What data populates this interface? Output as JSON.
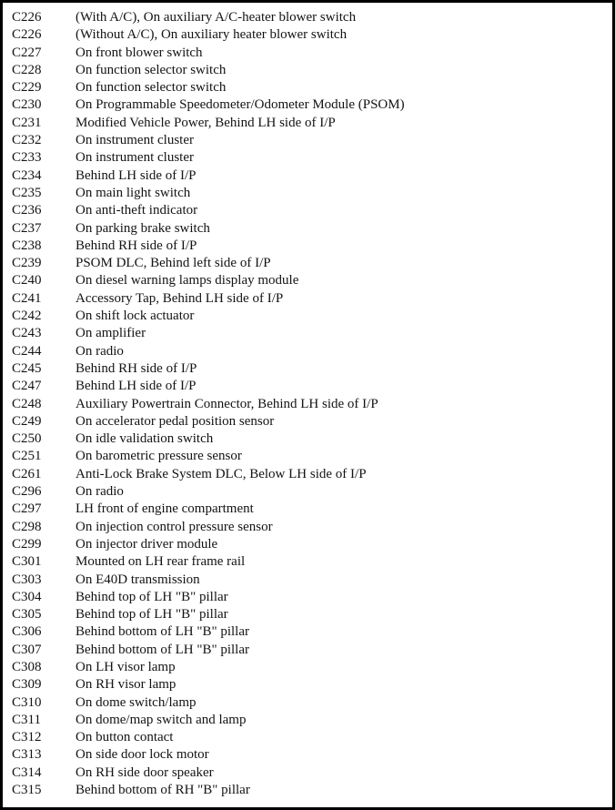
{
  "colors": {
    "border": "#000000",
    "background": "#ffffff",
    "text": "#131313"
  },
  "table": {
    "rows": [
      {
        "code": "C226",
        "location": "(With A/C), On auxiliary A/C-heater blower switch"
      },
      {
        "code": "C226",
        "location": "(Without A/C), On auxiliary heater blower switch"
      },
      {
        "code": "C227",
        "location": "On front blower switch"
      },
      {
        "code": "C228",
        "location": "On function selector switch"
      },
      {
        "code": "C229",
        "location": "On function selector switch"
      },
      {
        "code": "C230",
        "location": "On Programmable Speedometer/Odometer Module (PSOM)"
      },
      {
        "code": "C231",
        "location": "Modified Vehicle Power, Behind LH side of I/P"
      },
      {
        "code": "C232",
        "location": "On instrument cluster"
      },
      {
        "code": "C233",
        "location": "On instrument cluster"
      },
      {
        "code": "C234",
        "location": "Behind LH side of I/P"
      },
      {
        "code": "C235",
        "location": "On main light switch"
      },
      {
        "code": "C236",
        "location": "On anti-theft indicator"
      },
      {
        "code": "C237",
        "location": "On parking brake switch"
      },
      {
        "code": "C238",
        "location": "Behind RH side of I/P"
      },
      {
        "code": "C239",
        "location": "PSOM DLC, Behind left side of I/P"
      },
      {
        "code": "C240",
        "location": "On diesel warning lamps display module"
      },
      {
        "code": "C241",
        "location": "Accessory Tap, Behind LH side of I/P"
      },
      {
        "code": "C242",
        "location": "On shift lock actuator"
      },
      {
        "code": "C243",
        "location": "On amplifier"
      },
      {
        "code": "C244",
        "location": "On radio"
      },
      {
        "code": "C245",
        "location": "Behind RH side of I/P"
      },
      {
        "code": "C247",
        "location": "Behind LH side of I/P"
      },
      {
        "code": "C248",
        "location": "Auxiliary Powertrain Connector, Behind LH side of I/P"
      },
      {
        "code": "C249",
        "location": "On accelerator pedal position sensor"
      },
      {
        "code": "C250",
        "location": "On idle validation switch"
      },
      {
        "code": "C251",
        "location": "On barometric pressure sensor"
      },
      {
        "code": "C261",
        "location": "Anti-Lock Brake System DLC, Below LH side of I/P"
      },
      {
        "code": "C296",
        "location": "On radio"
      },
      {
        "code": "C297",
        "location": "LH front of engine compartment"
      },
      {
        "code": "C298",
        "location": "On injection control pressure sensor"
      },
      {
        "code": "C299",
        "location": "On injector driver module"
      },
      {
        "code": "C301",
        "location": "Mounted on LH rear frame rail"
      },
      {
        "code": "C303",
        "location": "On E40D transmission"
      },
      {
        "code": "C304",
        "location": "Behind top of LH \"B\" pillar"
      },
      {
        "code": "C305",
        "location": "Behind top of LH \"B\" pillar"
      },
      {
        "code": "C306",
        "location": "Behind bottom of LH \"B\" pillar"
      },
      {
        "code": "C307",
        "location": "Behind bottom of LH \"B\" pillar"
      },
      {
        "code": "C308",
        "location": "On LH visor lamp"
      },
      {
        "code": "C309",
        "location": "On RH visor lamp"
      },
      {
        "code": "C310",
        "location": "On dome switch/lamp"
      },
      {
        "code": "C311",
        "location": "On dome/map switch and lamp"
      },
      {
        "code": "C312",
        "location": "On button contact"
      },
      {
        "code": "C313",
        "location": "On side door lock motor"
      },
      {
        "code": "C314",
        "location": "On RH side door speaker"
      },
      {
        "code": "C315",
        "location": "Behind bottom of RH \"B\" pillar"
      }
    ]
  }
}
